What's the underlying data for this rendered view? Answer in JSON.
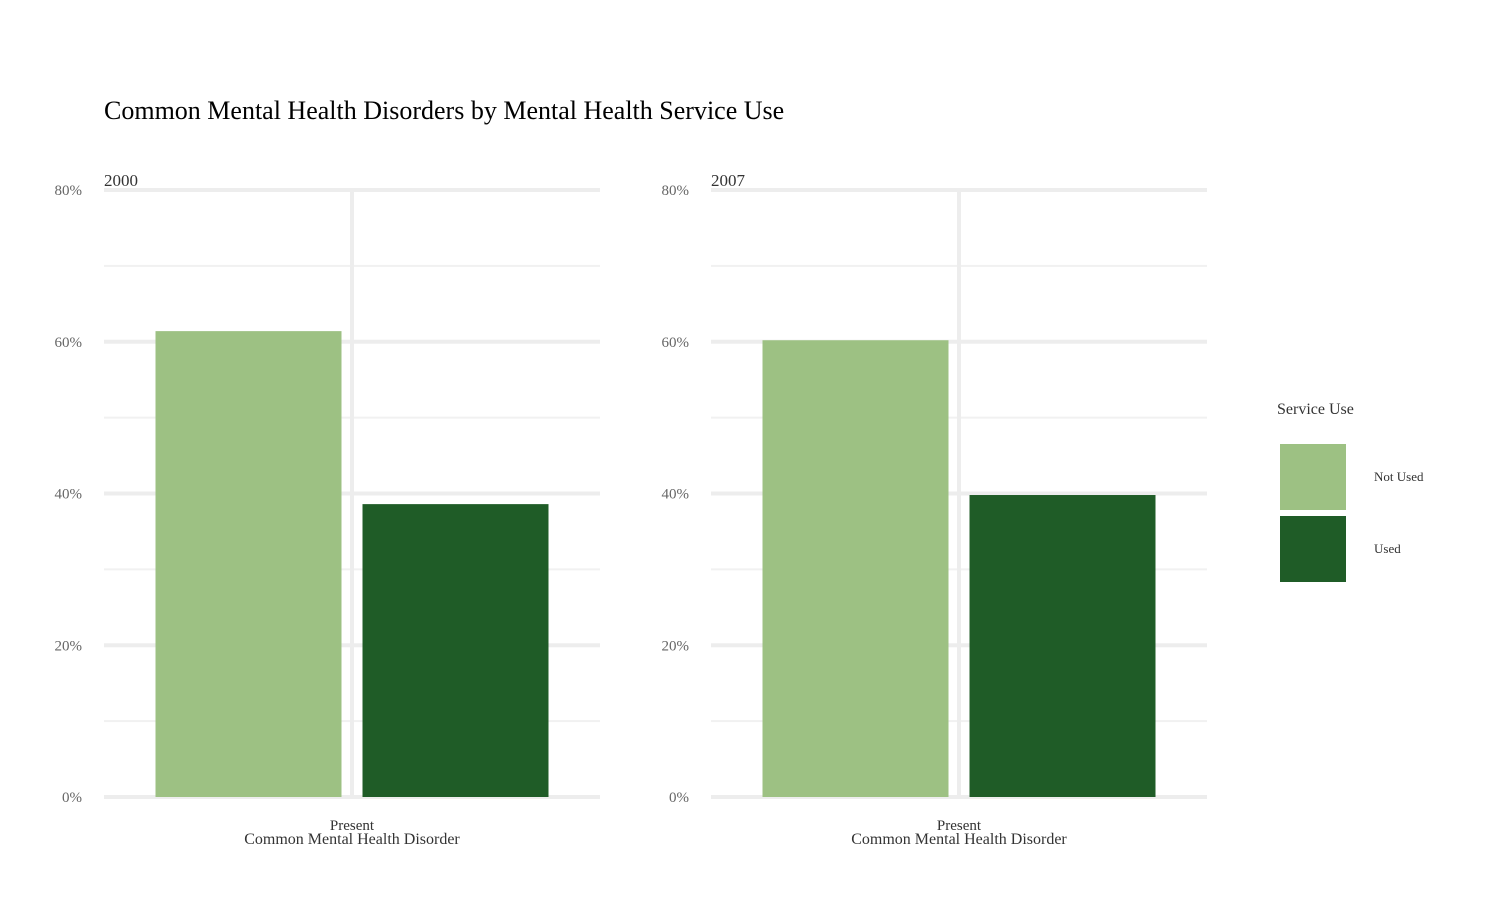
{
  "chart_data": {
    "type": "bar",
    "title": "Common Mental Health Disorders by Mental Health Service Use",
    "xlabel": "Common Mental Health Disorder",
    "ylabel": "",
    "ylim": [
      0,
      80
    ],
    "y_ticks": [
      "0%",
      "20%",
      "40%",
      "60%",
      "80%"
    ],
    "grid": true,
    "legend": {
      "title": "Service Use",
      "placement": "right",
      "entries": [
        {
          "name": "Not Used",
          "color": "#9dc183"
        },
        {
          "name": "Used",
          "color": "#1f5c27"
        }
      ]
    },
    "facets": [
      {
        "label": "2000",
        "categories": [
          "Present"
        ],
        "series": [
          {
            "name": "Not Used",
            "values": [
              61.4
            ]
          },
          {
            "name": "Used",
            "values": [
              38.6
            ]
          }
        ]
      },
      {
        "label": "2007",
        "categories": [
          "Present"
        ],
        "series": [
          {
            "name": "Not Used",
            "values": [
              60.2
            ]
          },
          {
            "name": "Used",
            "values": [
              39.8
            ]
          }
        ]
      }
    ]
  }
}
